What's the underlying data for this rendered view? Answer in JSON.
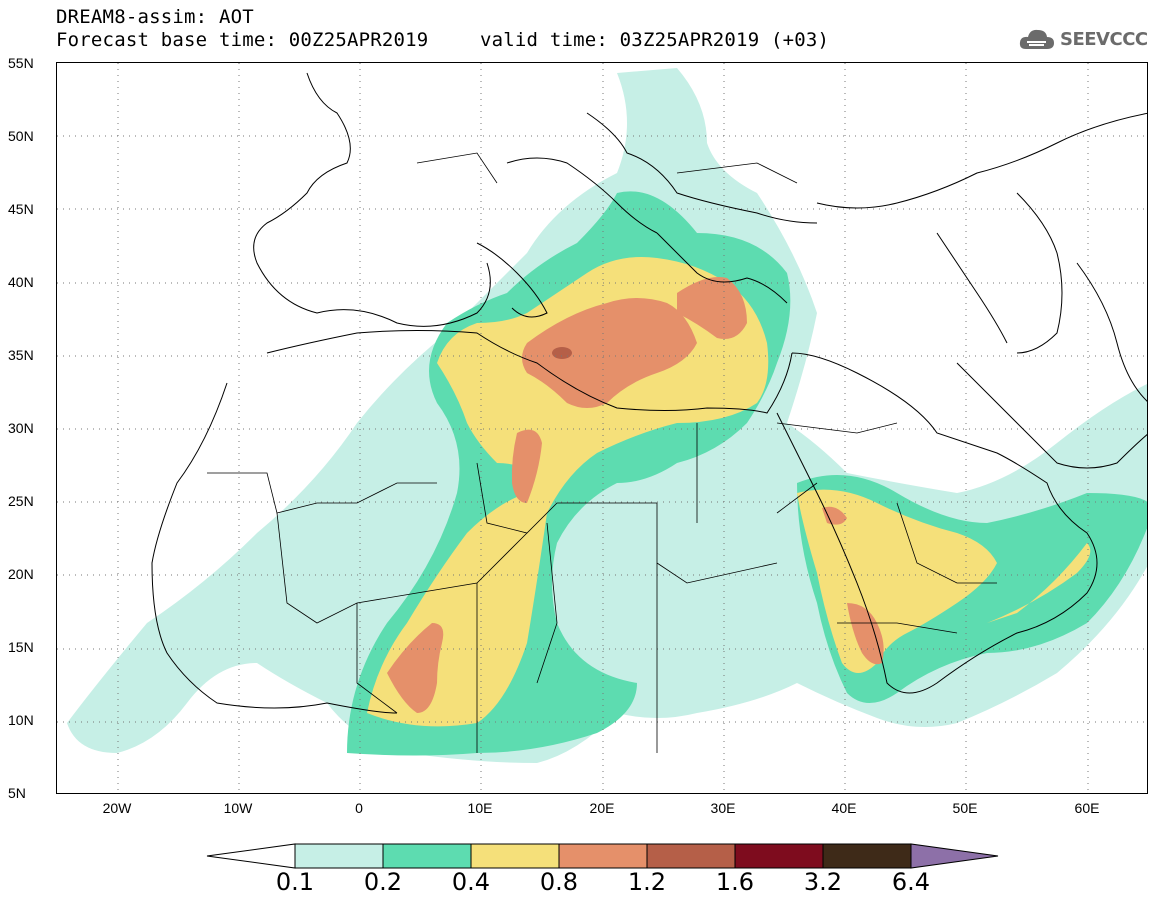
{
  "header": {
    "line1": "DREAM8-assim: AOT",
    "line2": "Forecast base time: 00Z25APR2019",
    "valid": "valid time: 03Z25APR2019 (+03)"
  },
  "logo": {
    "icon": "cloud-icon",
    "text": "SEEVCCC"
  },
  "map": {
    "lon_range": [
      -25,
      65
    ],
    "lat_range": [
      5,
      55
    ],
    "lat_ticks": [
      "55N",
      "50N",
      "45N",
      "40N",
      "35N",
      "30N",
      "25N",
      "20N",
      "15N",
      "10N",
      "5N"
    ],
    "lon_ticks": [
      "20W",
      "10W",
      "0",
      "10E",
      "20E",
      "30E",
      "40E",
      "50E",
      "60E"
    ],
    "gridlines": "dotted"
  },
  "colorbar": {
    "levels": [
      "0.1",
      "0.2",
      "0.4",
      "0.8",
      "1.2",
      "1.6",
      "3.2",
      "6.4"
    ],
    "colors": [
      "#ffffff",
      "#c6efe6",
      "#5ddcb0",
      "#f5e07a",
      "#e5906a",
      "#b55f48",
      "#7e0c1e",
      "#3e2a18",
      "#8d70a8"
    ]
  }
}
